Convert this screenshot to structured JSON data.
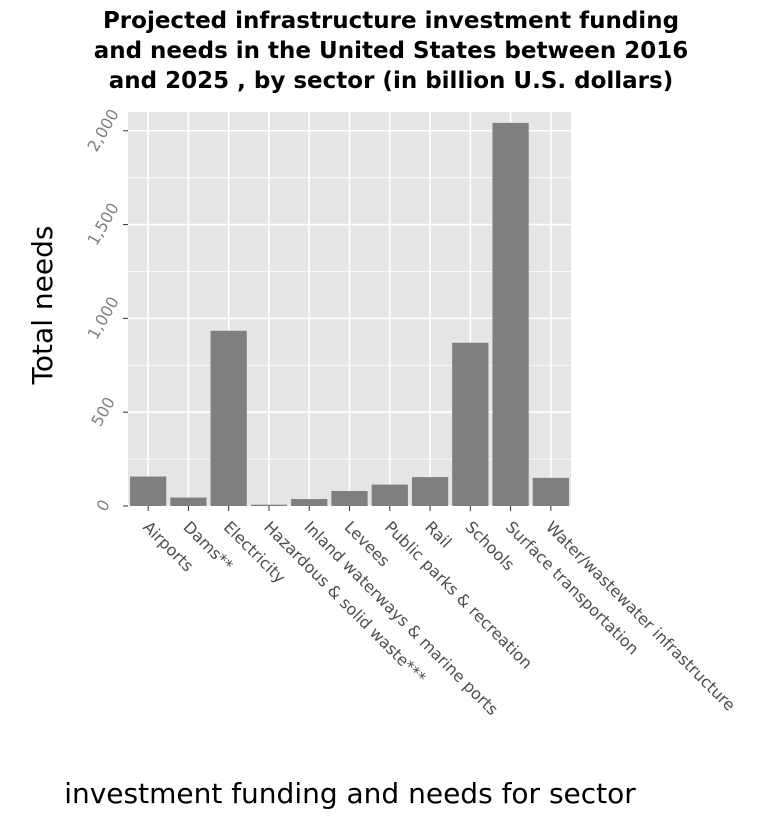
{
  "chart_data": {
    "type": "bar",
    "title_lines": [
      "Projected infrastructure investment funding",
      "and needs in the United States between 2016",
      "and 2025 , by sector (in billion U.S. dollars)"
    ],
    "xlabel": "investment funding and needs for sector",
    "ylabel": "Total needs",
    "categories": [
      "Airports",
      "Dams**",
      "Electricity",
      "Hazardous & solid waste***",
      "Inland waterways & marine ports",
      "Levees",
      "Public parks & recreation",
      "Rail",
      "Schools",
      "Surface transportation",
      "Water/wastewater infrastructure"
    ],
    "values": [
      157,
      45,
      934,
      7,
      37,
      80,
      114,
      154,
      870,
      2042,
      150
    ],
    "ylim": [
      0,
      2100
    ],
    "yticks": [
      0,
      500,
      1000,
      1500,
      2000
    ],
    "ytick_labels": [
      "0",
      "500",
      "1,000",
      "1,500",
      "2,000"
    ],
    "grid": true,
    "legend": "none",
    "colors": {
      "bar": "#7f7f7f",
      "panel": "#e5e5e5",
      "grid": "#ffffff",
      "tick_text": "#7f7f7f"
    }
  }
}
